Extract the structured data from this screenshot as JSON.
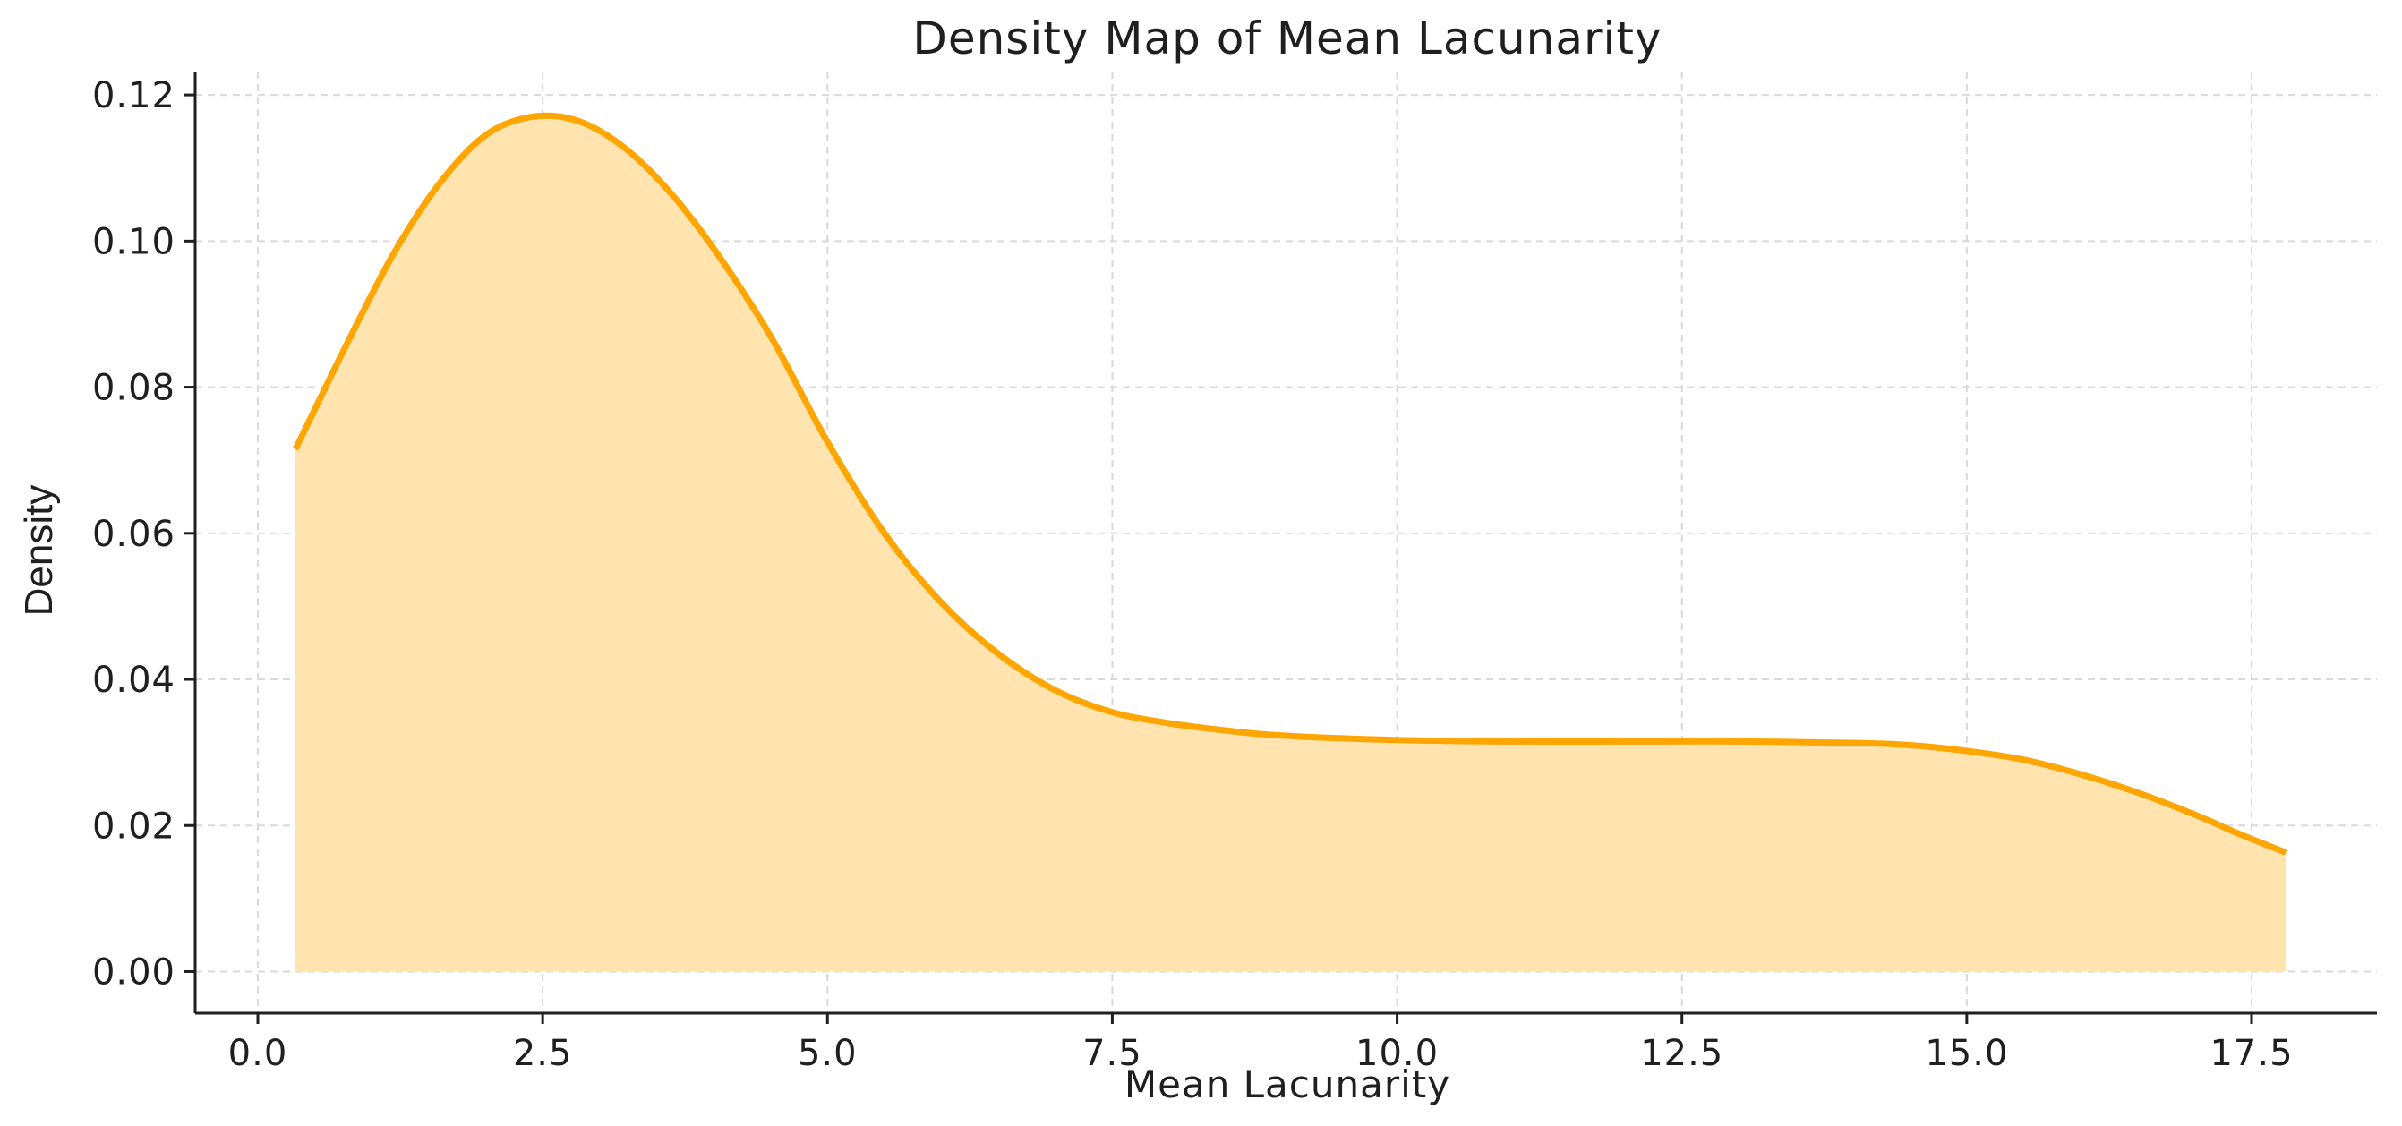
{
  "chart_data": {
    "type": "area",
    "title": "Density Map of Mean Lacunarity",
    "xlabel": "Mean Lacunarity",
    "ylabel": "Density",
    "xlim": [
      -0.55,
      18.6
    ],
    "ylim": [
      -0.0057,
      0.1232
    ],
    "xticks": [
      0.0,
      2.5,
      5.0,
      7.5,
      10.0,
      12.5,
      15.0,
      17.5
    ],
    "xtick_labels": [
      "0.0",
      "2.5",
      "5.0",
      "7.5",
      "10.0",
      "12.5",
      "15.0",
      "17.5"
    ],
    "yticks": [
      0.0,
      0.02,
      0.04,
      0.06,
      0.08,
      0.1,
      0.12
    ],
    "ytick_labels": [
      "0.00",
      "0.02",
      "0.04",
      "0.06",
      "0.08",
      "0.10",
      "0.12"
    ],
    "grid": true,
    "series": [
      {
        "x": [
          0.33,
          0.8,
          1.2,
          1.6,
          2.0,
          2.4,
          2.8,
          3.2,
          3.6,
          4.0,
          4.5,
          5.0,
          5.5,
          6.0,
          6.5,
          7.0,
          7.5,
          8.0,
          8.5,
          9.0,
          10.0,
          11.0,
          12.0,
          13.0,
          14.0,
          14.5,
          15.0,
          15.5,
          16.0,
          16.5,
          17.0,
          17.4,
          17.8
        ],
        "y": [
          0.0715,
          0.0865,
          0.0985,
          0.108,
          0.1145,
          0.117,
          0.1165,
          0.113,
          0.107,
          0.099,
          0.087,
          0.0725,
          0.06,
          0.0505,
          0.0435,
          0.0385,
          0.0355,
          0.034,
          0.033,
          0.0323,
          0.0317,
          0.0315,
          0.0315,
          0.0315,
          0.0313,
          0.031,
          0.0302,
          0.029,
          0.027,
          0.0245,
          0.0215,
          0.0188,
          0.0163
        ]
      }
    ],
    "colors": {
      "line": "#FFA500",
      "fill": "#FFE4B0",
      "grid": "#d9d9d9",
      "axis": "#1f1f1f"
    }
  }
}
